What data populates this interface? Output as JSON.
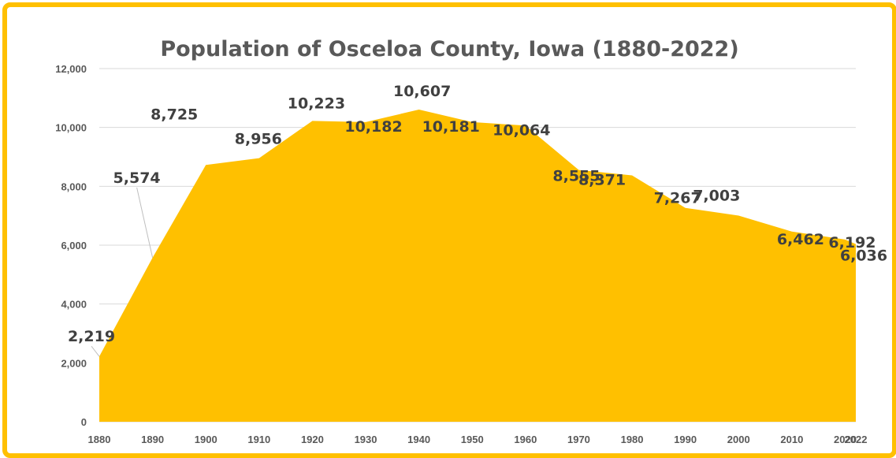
{
  "chart_data": {
    "type": "area",
    "title": "Population of Osceloa County, Iowa (1880-2022)",
    "xlabel": "",
    "ylabel": "",
    "x": [
      1880,
      1890,
      1900,
      1910,
      1920,
      1930,
      1940,
      1950,
      1960,
      1970,
      1980,
      1990,
      2000,
      2010,
      2020,
      2022
    ],
    "x_tick_labels": [
      "1880",
      "1890",
      "1900",
      "1910",
      "1920",
      "1930",
      "1940",
      "1950",
      "1960",
      "1970",
      "1980",
      "1990",
      "2000",
      "2010",
      "2020",
      "2022"
    ],
    "values": [
      2219,
      5574,
      8725,
      8956,
      10223,
      10182,
      10607,
      10181,
      10064,
      8555,
      8371,
      7267,
      7003,
      6462,
      6192,
      6036
    ],
    "data_labels": [
      "2,219",
      "5,574",
      "8,725",
      "8,956",
      "10,223",
      "10,182",
      "10,607",
      "10,181",
      "10,064",
      "8,555",
      "8,371",
      "7,267",
      "7,003",
      "6,462",
      "6,192",
      "6,036"
    ],
    "y_ticks": [
      0,
      2000,
      4000,
      6000,
      8000,
      10000,
      12000
    ],
    "y_tick_labels": [
      "0",
      "2,000",
      "4,000",
      "6,000",
      "8,000",
      "10,000",
      "12,000"
    ],
    "ylim": [
      0,
      12000
    ],
    "grid": true,
    "legend": "none",
    "colors": {
      "fill": "#FFC000",
      "frame": "#FFC000",
      "grid": "#D9D9D9"
    }
  }
}
